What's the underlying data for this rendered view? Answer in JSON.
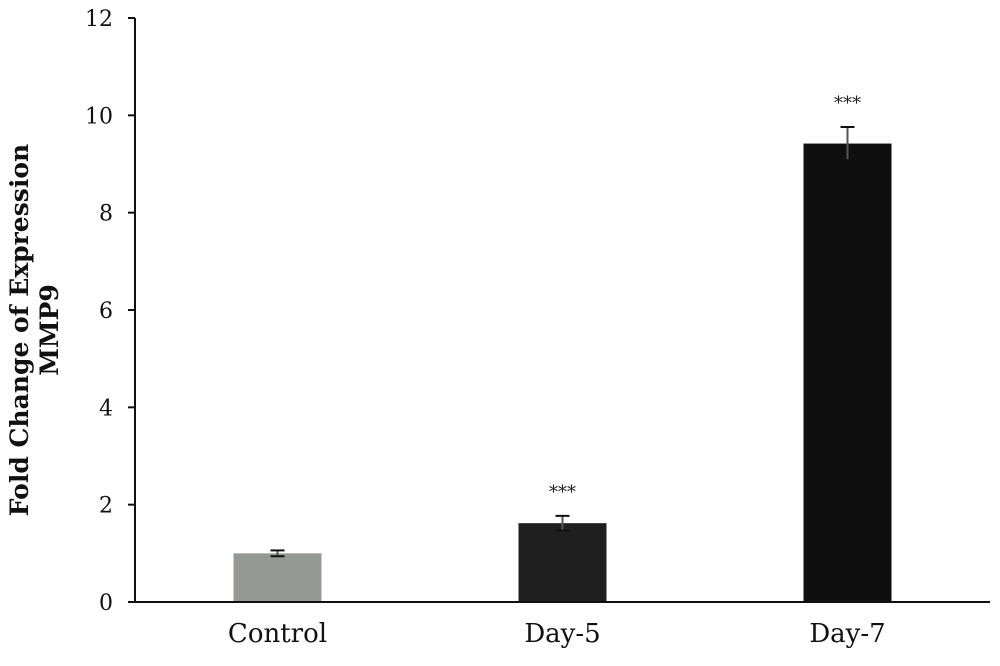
{
  "chart_data": {
    "type": "bar",
    "categories": [
      "Control",
      "Day-5",
      "Day-7"
    ],
    "values": [
      1.0,
      1.62,
      9.42
    ],
    "errors": [
      0.06,
      0.15,
      0.34
    ],
    "annotations": [
      "",
      "***",
      "***"
    ],
    "bar_colors": [
      "#959996",
      "#1f1f1f",
      "#0f0f0f"
    ],
    "ylabel_lines": [
      "Fold Change of Expression",
      "MMP9"
    ],
    "xlabel": "",
    "ylim": [
      0,
      12
    ],
    "yticks": [
      0,
      2,
      4,
      6,
      8,
      10,
      12
    ],
    "grid": false,
    "legend": "none"
  }
}
